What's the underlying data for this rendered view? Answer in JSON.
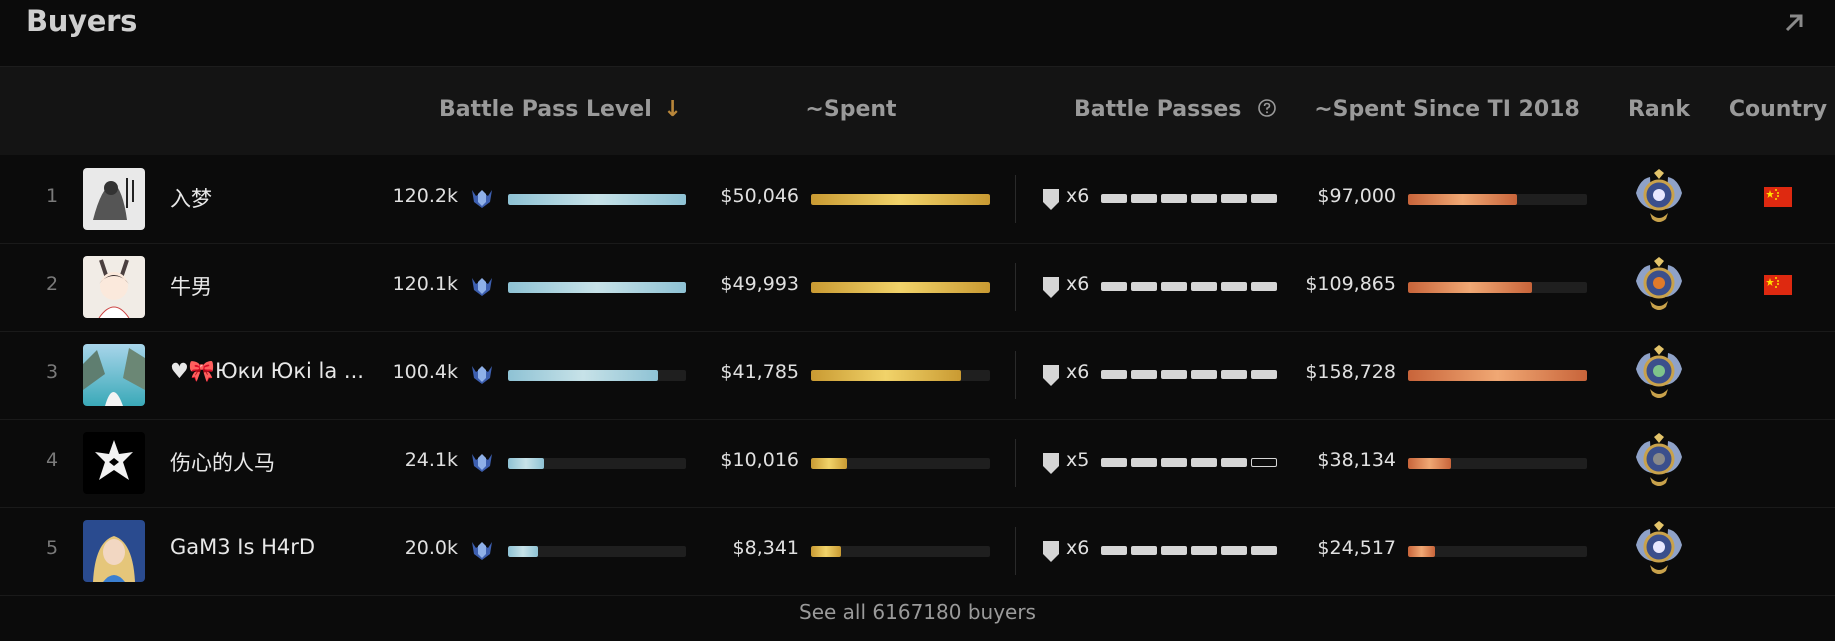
{
  "header": {
    "title": "Buyers"
  },
  "columns": {
    "level": "Battle Pass Level",
    "sort_indicator": "↓",
    "spent": "~Spent",
    "battle_passes": "Battle Passes",
    "spent_since": "~Spent Since TI 2018",
    "rank": "Rank",
    "country": "Country"
  },
  "rows": [
    {
      "rank": "1",
      "name": "入梦",
      "level": "120.2k",
      "level_frac": 1.0,
      "spent": "$50,046",
      "spent_frac": 1.0,
      "passes": "x6",
      "passes_n": 6,
      "ti": "$97,000",
      "ti_frac": 0.61,
      "flag": true
    },
    {
      "rank": "2",
      "name": "牛男",
      "level": "120.1k",
      "level_frac": 1.0,
      "spent": "$49,993",
      "spent_frac": 1.0,
      "passes": "x6",
      "passes_n": 6,
      "ti": "$109,865",
      "ti_frac": 0.69,
      "flag": true
    },
    {
      "rank": "3",
      "name": "♥🎀Юки Юкі la ...",
      "level": "100.4k",
      "level_frac": 0.84,
      "spent": "$41,785",
      "spent_frac": 0.84,
      "passes": "x6",
      "passes_n": 6,
      "ti": "$158,728",
      "ti_frac": 1.0,
      "flag": false
    },
    {
      "rank": "4",
      "name": "伤心的人马",
      "level": "24.1k",
      "level_frac": 0.2,
      "spent": "$10,016",
      "spent_frac": 0.2,
      "passes": "x5",
      "passes_n": 5,
      "ti": "$38,134",
      "ti_frac": 0.24,
      "flag": false
    },
    {
      "rank": "5",
      "name": "GaM3 Is H4rD",
      "level": "20.0k",
      "level_frac": 0.17,
      "spent": "$8,341",
      "spent_frac": 0.17,
      "passes": "x6",
      "passes_n": 6,
      "ti": "$24,517",
      "ti_frac": 0.15,
      "flag": false
    }
  ],
  "footer": {
    "link": "See all 6167180 buyers"
  }
}
